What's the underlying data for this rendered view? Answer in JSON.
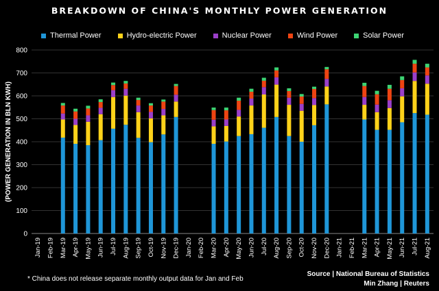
{
  "chart_data": {
    "type": "bar",
    "stacked": true,
    "title": "BREAKDOWN OF CHINA'S MONTHLY POWER GENERATION",
    "ylabel": "(POWER GENERATION IN BLN KWH)",
    "xlabel": "",
    "ylim": [
      0,
      800
    ],
    "yticks": [
      0,
      100,
      200,
      300,
      400,
      500,
      600,
      700,
      800
    ],
    "categories": [
      "Jan-19",
      "Feb-19",
      "Mar-19",
      "Apr-19",
      "May-19",
      "Jun-19",
      "Jul-19",
      "Aug-19",
      "Sep-19",
      "Oct-19",
      "Nov-19",
      "Dec-19",
      "Jan-20",
      "Feb-20",
      "Mar-20",
      "Apr-20",
      "May-20",
      "Jun-20",
      "Jul-20",
      "Aug-20",
      "Sep-20",
      "Oct-20",
      "Nov-20",
      "Dec-20",
      "Jan-21",
      "Feb-21",
      "Mar-21",
      "Apr-21",
      "May-21",
      "Jun-21",
      "Jul-21",
      "Aug-21"
    ],
    "series": [
      {
        "name": "Thermal Power",
        "color": "#1f96d8",
        "values": [
          null,
          null,
          418,
          391,
          385,
          407,
          457,
          474,
          417,
          398,
          432,
          508,
          null,
          null,
          391,
          401,
          425,
          433,
          461,
          508,
          425,
          400,
          472,
          563,
          null,
          null,
          497,
          452,
          452,
          485,
          525,
          518
        ]
      },
      {
        "name": "Hydro-electric Power",
        "color": "#ffd21a",
        "values": [
          null,
          null,
          79,
          82,
          102,
          113,
          138,
          127,
          112,
          104,
          83,
          67,
          null,
          null,
          76,
          68,
          85,
          125,
          145,
          141,
          136,
          135,
          88,
          78,
          null,
          null,
          64,
          77,
          95,
          113,
          140,
          135
        ]
      },
      {
        "name": "Nuclear Power",
        "color": "#9b3fc9",
        "values": [
          null,
          null,
          26,
          27,
          28,
          28,
          30,
          30,
          29,
          28,
          28,
          30,
          null,
          null,
          29,
          28,
          29,
          30,
          32,
          32,
          31,
          30,
          30,
          33,
          null,
          null,
          34,
          33,
          34,
          35,
          37,
          36
        ]
      },
      {
        "name": "Wind Power",
        "color": "#ee4412",
        "values": [
          null,
          null,
          35,
          32,
          30,
          25,
          22,
          23,
          24,
          28,
          32,
          38,
          null,
          null,
          42,
          40,
          40,
          30,
          28,
          30,
          29,
          32,
          40,
          42,
          null,
          null,
          48,
          45,
          50,
          36,
          38,
          35
        ]
      },
      {
        "name": "Solar Power",
        "color": "#3dd473",
        "values": [
          null,
          null,
          11,
          12,
          12,
          12,
          11,
          11,
          10,
          10,
          9,
          9,
          null,
          null,
          11,
          12,
          13,
          13,
          13,
          13,
          12,
          11,
          10,
          10,
          null,
          null,
          14,
          15,
          17,
          16,
          17,
          16
        ]
      }
    ]
  },
  "footnote": "* China does not release separate monthly output data for Jan and Feb",
  "source_line1": "Source | National Bureau of Statistics",
  "source_line2": "Min Zhang | Reuters"
}
